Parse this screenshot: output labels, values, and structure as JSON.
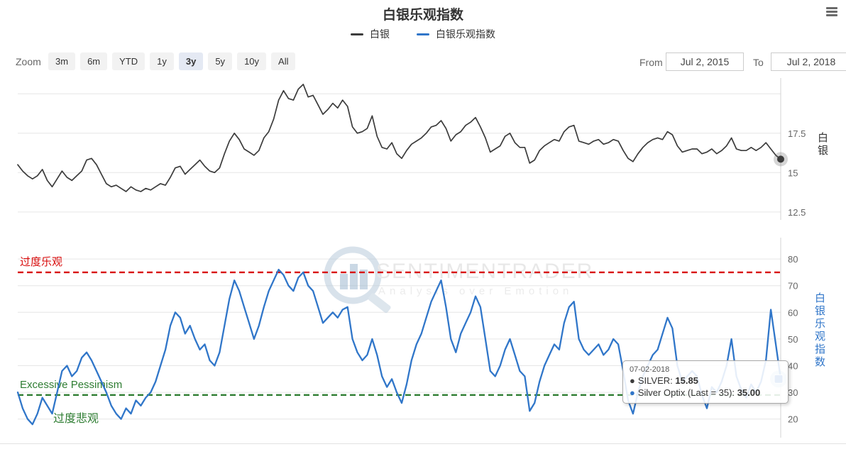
{
  "header": {
    "title": "白银乐观指数"
  },
  "legend": [
    {
      "label": "白银",
      "color": "#3c3c3c"
    },
    {
      "label": "白银乐观指数",
      "color": "#3076c9"
    }
  ],
  "toolbar": {
    "zoom_label": "Zoom",
    "buttons": [
      {
        "label": "3m",
        "active": false
      },
      {
        "label": "6m",
        "active": false
      },
      {
        "label": "YTD",
        "active": false
      },
      {
        "label": "1y",
        "active": false
      },
      {
        "label": "3y",
        "active": true
      },
      {
        "label": "5y",
        "active": false
      },
      {
        "label": "10y",
        "active": false
      },
      {
        "label": "All",
        "active": false
      }
    ],
    "from_label": "From",
    "from_value": "Jul 2, 2015",
    "to_label": "To",
    "to_value": "Jul 2, 2018"
  },
  "watermark": {
    "line1": "SENTIMENTRADER",
    "line2": "Analysis over Emotion"
  },
  "tooltip": {
    "date": "07-02-2018",
    "rows": [
      {
        "color": "#3c3c3c",
        "label": "SILVER:",
        "value": "15.85"
      },
      {
        "color": "#3076c9",
        "label": "Silver Optix (Last = 35):",
        "value": "35.00"
      }
    ]
  },
  "chart_data": {
    "type": "line",
    "title": "白银乐观指数",
    "x_range": [
      "2015-07-02",
      "2018-07-02"
    ],
    "x_unit": "weekly",
    "legend_position": "top-center",
    "grid": true,
    "panels": [
      {
        "name": "silver_price",
        "series_name": "白银",
        "color": "#3c3c3c",
        "axis_title": "白银",
        "axis_side": "right",
        "ylim": [
          12.0,
          21.0
        ],
        "gridlines": [
          20,
          17.5,
          15,
          12.5
        ],
        "yticks": [
          {
            "v": 17.5,
            "label": "17.5"
          },
          {
            "v": 15,
            "label": "15"
          },
          {
            "v": 12.5,
            "label": "12.5"
          }
        ],
        "marker": "circle",
        "last_value": 15.85,
        "values": [
          15.5,
          15.1,
          14.8,
          14.6,
          14.8,
          15.2,
          14.5,
          14.1,
          14.6,
          15.1,
          14.7,
          14.5,
          14.8,
          15.1,
          15.8,
          15.9,
          15.5,
          14.9,
          14.3,
          14.1,
          14.2,
          14.0,
          13.8,
          14.1,
          13.9,
          13.8,
          14.0,
          13.9,
          14.1,
          14.3,
          14.2,
          14.7,
          15.3,
          15.4,
          14.9,
          15.2,
          15.5,
          15.8,
          15.4,
          15.1,
          15.0,
          15.3,
          16.2,
          17.0,
          17.5,
          17.1,
          16.5,
          16.3,
          16.1,
          16.4,
          17.2,
          17.6,
          18.4,
          19.6,
          20.2,
          19.7,
          19.6,
          20.3,
          20.6,
          19.8,
          19.9,
          19.3,
          18.7,
          19.0,
          19.4,
          19.1,
          19.6,
          19.2,
          17.9,
          17.5,
          17.6,
          17.8,
          18.6,
          17.3,
          16.6,
          16.5,
          16.9,
          16.2,
          15.9,
          16.4,
          16.8,
          17.0,
          17.2,
          17.5,
          17.9,
          18.0,
          18.3,
          17.8,
          17.0,
          17.4,
          17.6,
          18.0,
          18.2,
          18.5,
          17.9,
          17.2,
          16.3,
          16.5,
          16.7,
          17.3,
          17.5,
          16.9,
          16.6,
          16.6,
          15.6,
          15.8,
          16.4,
          16.7,
          16.9,
          17.1,
          17.0,
          17.6,
          17.9,
          18.0,
          17.0,
          16.9,
          16.8,
          17.0,
          17.1,
          16.8,
          16.9,
          17.1,
          17.0,
          16.4,
          15.9,
          15.7,
          16.2,
          16.6,
          16.9,
          17.1,
          17.2,
          17.1,
          17.6,
          17.4,
          16.7,
          16.3,
          16.4,
          16.5,
          16.5,
          16.2,
          16.3,
          16.5,
          16.2,
          16.4,
          16.7,
          17.2,
          16.5,
          16.4,
          16.4,
          16.6,
          16.4,
          16.6,
          16.9,
          16.5,
          16.1,
          15.85
        ]
      },
      {
        "name": "silver_optix",
        "series_name": "白银乐观指数",
        "color": "#3076c9",
        "axis_title": "白银乐观指数",
        "axis_side": "right",
        "ylim": [
          13,
          88
        ],
        "gridlines": [
          80,
          70,
          60,
          50,
          40,
          30,
          20
        ],
        "yticks": [
          {
            "v": 80,
            "label": "80"
          },
          {
            "v": 70,
            "label": "70"
          },
          {
            "v": 60,
            "label": "60"
          },
          {
            "v": 50,
            "label": "50"
          },
          {
            "v": 40,
            "label": "40"
          },
          {
            "v": 30,
            "label": "30"
          },
          {
            "v": 20,
            "label": "20"
          }
        ],
        "plotlines": [
          {
            "value": 75,
            "color": "#d80b0b",
            "style": "dashed",
            "label_above": "过度乐观",
            "label_below": ""
          },
          {
            "value": 29,
            "color": "#2e7d32",
            "style": "dashed",
            "label_above": "Excessive Pessimism",
            "label_below": "过度悲观"
          }
        ],
        "marker": "square",
        "last_value": 35.0,
        "values": [
          30,
          24,
          20,
          18,
          22,
          28,
          25,
          22,
          30,
          38,
          40,
          36,
          38,
          43,
          45,
          42,
          38,
          34,
          30,
          25,
          22,
          20,
          24,
          22,
          27,
          25,
          28,
          30,
          34,
          40,
          46,
          55,
          60,
          58,
          52,
          55,
          50,
          46,
          48,
          42,
          40,
          45,
          55,
          65,
          72,
          68,
          62,
          56,
          50,
          55,
          62,
          68,
          72,
          76,
          74,
          70,
          68,
          73,
          75,
          70,
          68,
          62,
          56,
          58,
          60,
          58,
          61,
          62,
          50,
          45,
          42,
          44,
          50,
          44,
          36,
          32,
          35,
          30,
          26,
          33,
          42,
          48,
          52,
          58,
          64,
          68,
          72,
          62,
          50,
          45,
          52,
          56,
          60,
          66,
          62,
          50,
          38,
          36,
          40,
          46,
          50,
          44,
          38,
          36,
          23,
          26,
          34,
          40,
          44,
          48,
          46,
          56,
          62,
          64,
          50,
          46,
          44,
          46,
          48,
          44,
          46,
          50,
          48,
          38,
          27,
          22,
          30,
          36,
          40,
          44,
          46,
          52,
          58,
          54,
          40,
          34,
          36,
          38,
          36,
          29,
          24,
          32,
          30,
          34,
          40,
          50,
          36,
          31,
          28,
          33,
          30,
          34,
          42,
          61,
          48,
          35
        ]
      }
    ]
  }
}
